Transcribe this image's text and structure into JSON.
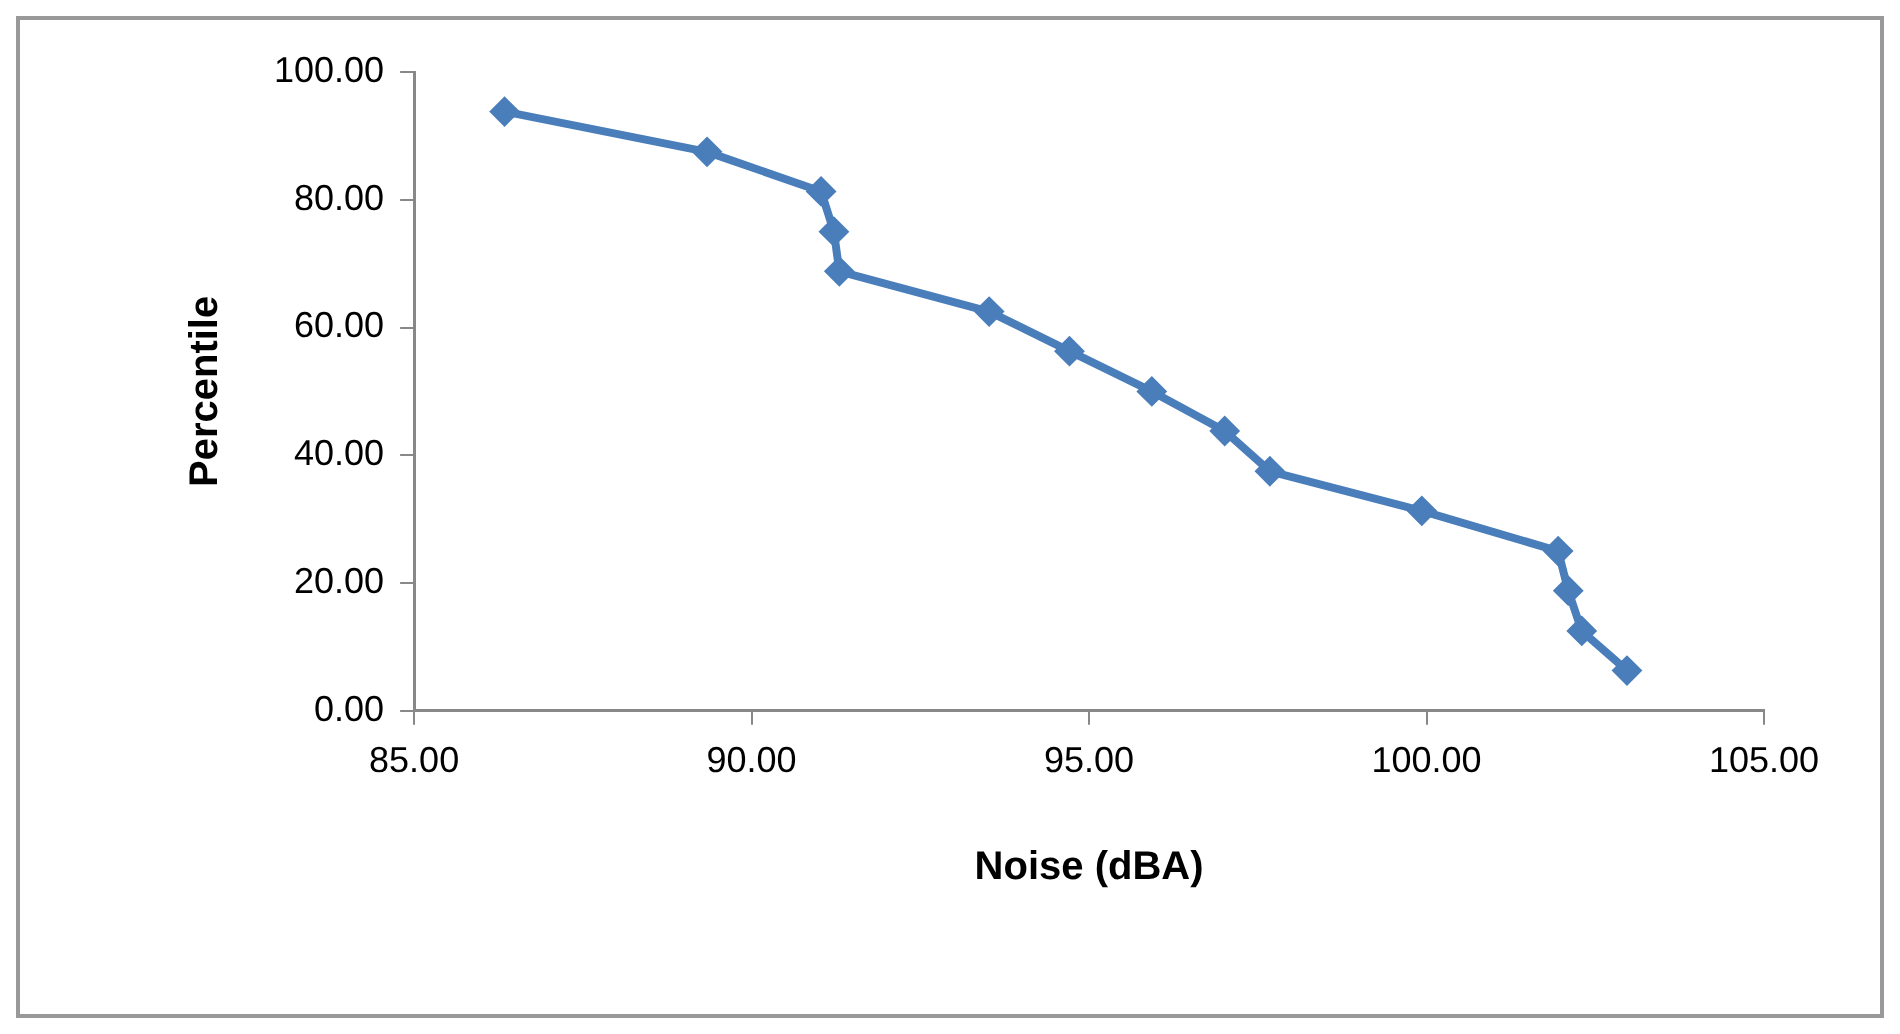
{
  "chart_data": {
    "type": "line",
    "xlabel": "Noise (dBA)",
    "ylabel": "Percentile",
    "x": [
      86.34,
      89.34,
      91.03,
      91.22,
      91.3,
      93.52,
      94.71,
      95.93,
      97.01,
      97.68,
      99.93,
      101.95,
      102.1,
      102.3,
      102.97
    ],
    "series": [
      {
        "color": "#4a7ebb",
        "values": [
          93.8,
          87.5,
          81.3,
          75.0,
          68.8,
          62.5,
          56.3,
          50.0,
          43.8,
          37.5,
          31.3,
          25.0,
          18.8,
          12.5,
          6.3
        ]
      }
    ],
    "xlim": [
      85,
      105
    ],
    "xticks": [
      {
        "value": 85,
        "label": "85.00"
      },
      {
        "value": 90,
        "label": "90.00"
      },
      {
        "value": 95,
        "label": "95.00"
      },
      {
        "value": 100,
        "label": "100.00"
      },
      {
        "value": 105,
        "label": "105.00"
      }
    ],
    "ylim": [
      0,
      100
    ],
    "yticks": [
      {
        "value": 0,
        "label": "0.00"
      },
      {
        "value": 20,
        "label": "20.00"
      },
      {
        "value": 40,
        "label": "40.00"
      },
      {
        "value": 60,
        "label": "60.00"
      },
      {
        "value": 80,
        "label": "80.00"
      },
      {
        "value": 100,
        "label": "100.00"
      }
    ],
    "grid": false,
    "legend": false,
    "marker": "diamond",
    "line_style": "solid"
  }
}
